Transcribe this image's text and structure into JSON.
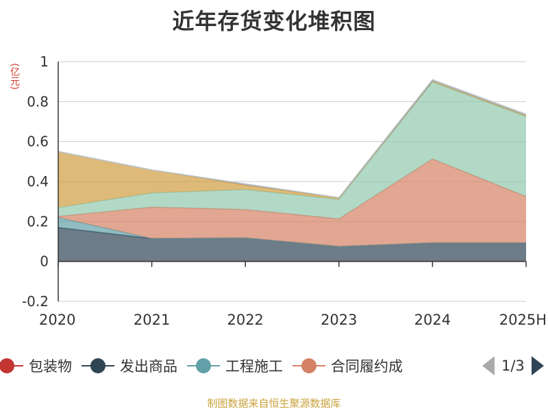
{
  "chart_data": {
    "type": "area",
    "stacked": true,
    "title": "近年存货变化堆积图",
    "unit_label": "(亿元)",
    "categories": [
      "2020",
      "2021",
      "2022",
      "2023",
      "2024",
      "2025H"
    ],
    "ylim": [
      -0.2,
      1.0
    ],
    "y_ticks": [
      -0.2,
      0,
      0.2,
      0.4,
      0.6,
      0.8,
      1
    ],
    "y_tick_labels": [
      "-0.2",
      "0",
      "0.2",
      "0.4",
      "0.6",
      "0.8",
      "1"
    ],
    "grid": true,
    "legend_position": "bottom",
    "series": [
      {
        "name": "包装物",
        "color": "#c23531",
        "values": [
          0,
          0,
          0,
          0,
          0,
          0
        ]
      },
      {
        "name": "发出商品",
        "color": "#2f4554",
        "values": [
          0.17,
          0.115,
          0.118,
          0.075,
          0.093,
          0.093
        ]
      },
      {
        "name": "工程施工",
        "color": "#61a0a8",
        "values": [
          0.05,
          0,
          0,
          0,
          0,
          0
        ]
      },
      {
        "name": "合同履约成",
        "color": "#d48265",
        "values": [
          0.005,
          0.157,
          0.142,
          0.138,
          0.42,
          0.232
        ]
      },
      {
        "name": "",
        "color": "#91c7ae",
        "values": [
          0.045,
          0.071,
          0.1,
          0.098,
          0.385,
          0.4
        ]
      },
      {
        "name": "",
        "color": "#d09c40",
        "values": [
          0.28,
          0.115,
          0.022,
          0.008,
          0.008,
          0.008
        ]
      },
      {
        "name": "",
        "color": "#8a9aae",
        "values": [
          0,
          0,
          0.006,
          0,
          0,
          0
        ]
      },
      {
        "name": "",
        "color": "#c4ccd3",
        "values": [
          0,
          0,
          0,
          0.001,
          0.005,
          0.005
        ]
      }
    ]
  },
  "legend": {
    "visible_items": [
      {
        "name": "包装物",
        "color": "#c23531"
      },
      {
        "name": "发出商品",
        "color": "#2f4554"
      },
      {
        "name": "工程施工",
        "color": "#61a0a8"
      },
      {
        "name": "合同履约成",
        "color": "#d48265"
      }
    ],
    "page_text": "1/3",
    "prev_icon": "chevron-left-icon",
    "next_icon": "chevron-right-icon"
  },
  "footer": {
    "source": "制图数据来自恒生聚源数据库"
  }
}
